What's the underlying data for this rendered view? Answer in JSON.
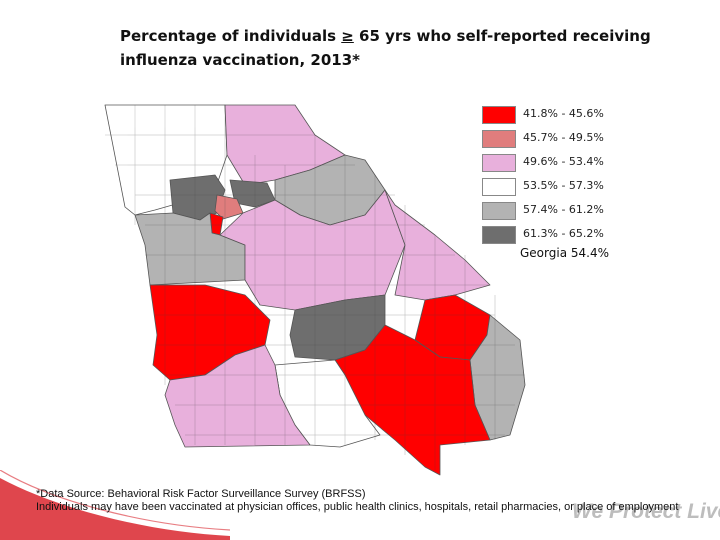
{
  "title": {
    "line1_prefix": "Percentage of individuals ",
    "ge_symbol": "≥",
    "line1_suffix": " 65 yrs who self-reported receiving",
    "line2": "influenza vaccination, 2013*"
  },
  "legend": [
    {
      "label": "41.8% - 45.6%",
      "color": "#ff0000"
    },
    {
      "label": "45.7% - 49.5%",
      "color": "#e07d7d"
    },
    {
      "label": "49.6% - 53.4%",
      "color": "#e8b0dc"
    },
    {
      "label": "53.5% - 57.3%",
      "color": "#ffffff"
    },
    {
      "label": "57.4% - 61.2%",
      "color": "#b3b3b3"
    },
    {
      "label": "61.3% - 65.2%",
      "color": "#6e6e6e"
    }
  ],
  "state_average": "Georgia 54.4%",
  "footnote": {
    "line1": "*Data Source: Behavioral Risk Factor Surveillance Survey (BRFSS)",
    "line2": "Individuals may have been vaccinated at physician offices, public health clinics, hospitals, retail pharmacies, or place of employment"
  },
  "tagline": "We Protect Lives.",
  "colors": {
    "accent": "#d9262e",
    "outline": "#555555"
  }
}
